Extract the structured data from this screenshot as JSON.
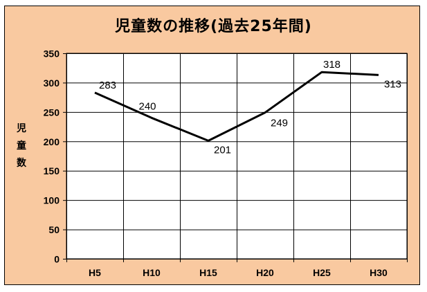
{
  "chart_data": {
    "type": "line",
    "title": "児童数の推移(過去25年間)",
    "ylabel": "児童数",
    "xlabel": "",
    "categories": [
      "H5",
      "H10",
      "H15",
      "H20",
      "H25",
      "H30"
    ],
    "series": [
      {
        "values": [
          283,
          240,
          201,
          249,
          318,
          313
        ]
      }
    ],
    "ylim": [
      0,
      350
    ],
    "yticks": [
      0,
      50,
      100,
      150,
      200,
      250,
      300,
      350
    ],
    "grid": true,
    "legend": "none",
    "colors": {
      "background": "#f9c9a0",
      "plot_area": "#ffffff",
      "line": "#000000"
    }
  }
}
